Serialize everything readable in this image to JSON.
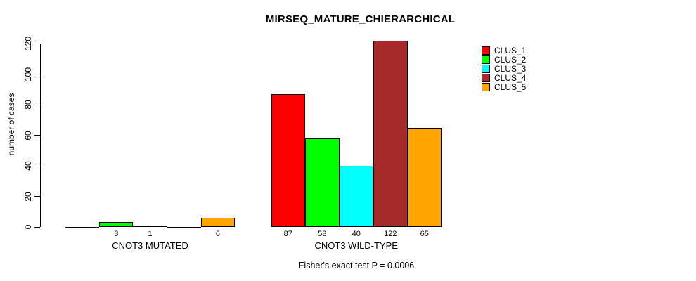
{
  "title": "MIRSEQ_MATURE_CHIERARCHICAL",
  "y_axis_label": "number of cases",
  "footer_annotation": "Fisher's exact test P = 0.0006",
  "chart_data": {
    "type": "bar",
    "title": "MIRSEQ_MATURE_CHIERARCHICAL",
    "xlabel": "",
    "ylabel": "number of cases",
    "ylim": [
      0,
      120
    ],
    "yticks": [
      0,
      20,
      40,
      60,
      80,
      100,
      120
    ],
    "grid": false,
    "legend_position": "right",
    "categories": [
      "CNOT3 MUTATED",
      "CNOT3 WILD-TYPE"
    ],
    "series": [
      {
        "name": "CLUS_1",
        "color": "#FF0000",
        "values": [
          0,
          87
        ]
      },
      {
        "name": "CLUS_2",
        "color": "#00FF00",
        "values": [
          3,
          58
        ]
      },
      {
        "name": "CLUS_3",
        "color": "#00FFFF",
        "values": [
          1,
          40
        ]
      },
      {
        "name": "CLUS_4",
        "color": "#A52A2A",
        "values": [
          0,
          122
        ]
      },
      {
        "name": "CLUS_5",
        "color": "#FFA500",
        "values": [
          6,
          65
        ]
      }
    ],
    "bar_value_labels_shown": [
      [
        "3",
        "1",
        "6"
      ],
      [
        "87",
        "58",
        "40",
        "122",
        "65"
      ]
    ],
    "annotation": "Fisher's exact test P = 0.0006",
    "bar_border_color": "#000000"
  }
}
